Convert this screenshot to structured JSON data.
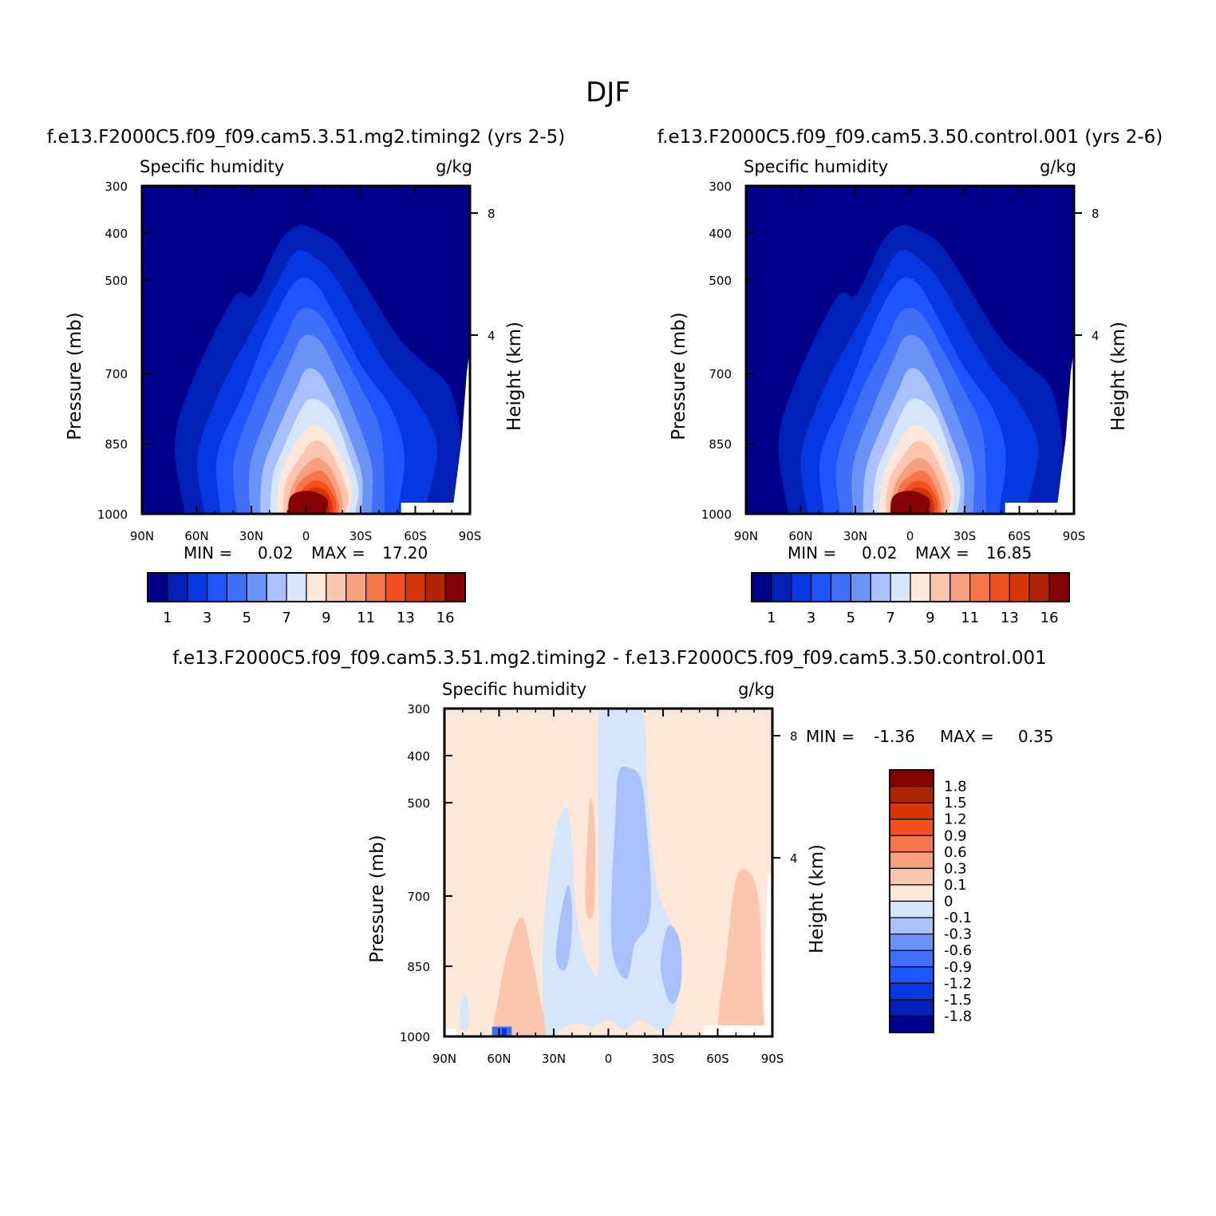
{
  "page_title": "DJF",
  "colors": {
    "seq": [
      "#00008a",
      "#0020b8",
      "#0538e0",
      "#1e54fe",
      "#3f6ff9",
      "#6a93f7",
      "#a8c0fb",
      "#d6e6fa",
      "#fde7d8",
      "#fbc6ad",
      "#f8a07d",
      "#f67647",
      "#f44f1e",
      "#d93407",
      "#b12305",
      "#850000"
    ],
    "div": [
      "#00008a",
      "#0020b8",
      "#0538e0",
      "#1e54fe",
      "#3f6ff9",
      "#6a93f7",
      "#a8c0fb",
      "#d6e6fa",
      "#fde7d8",
      "#fbc6ad",
      "#f8a07d",
      "#f67647",
      "#f44f1e",
      "#d93407",
      "#b12305",
      "#850000"
    ]
  },
  "chart_data": [
    {
      "type": "heatmap",
      "title": "f.e13.F2000C5.f09_f09.cam5.3.51.mg2.timing2 (yrs 2-5)",
      "left_string": "Specific humidity",
      "right_string": "g/kg",
      "ylabel": "Pressure (mb)",
      "y2label": "Height (km)",
      "x_ticks": [
        "90N",
        "60N",
        "30N",
        "0",
        "30S",
        "60S",
        "90S"
      ],
      "y_ticks": [
        "300",
        "400",
        "500",
        "700",
        "850",
        "1000"
      ],
      "y2_ticks": [
        "8",
        "4"
      ],
      "min_label": "MIN =",
      "min_value": "0.02",
      "max_label": "MAX =",
      "max_value": "17.20",
      "colorbar_labels": [
        "1",
        "3",
        "5",
        "7",
        "9",
        "11",
        "13",
        "16"
      ],
      "colorbar_orientation": "horizontal",
      "peak_location": "surface near equator",
      "peak_value": 17.2
    },
    {
      "type": "heatmap",
      "title": "f.e13.F2000C5.f09_f09.cam5.3.50.control.001 (yrs 2-6)",
      "left_string": "Specific humidity",
      "right_string": "g/kg",
      "ylabel": "Pressure (mb)",
      "y2label": "Height (km)",
      "x_ticks": [
        "90N",
        "60N",
        "30N",
        "0",
        "30S",
        "60S",
        "90S"
      ],
      "y_ticks": [
        "300",
        "400",
        "500",
        "700",
        "850",
        "1000"
      ],
      "y2_ticks": [
        "8",
        "4"
      ],
      "min_label": "MIN =",
      "min_value": "0.02",
      "max_label": "MAX =",
      "max_value": "16.85",
      "colorbar_labels": [
        "1",
        "3",
        "5",
        "7",
        "9",
        "11",
        "13",
        "16"
      ],
      "colorbar_orientation": "horizontal",
      "peak_location": "surface near equator",
      "peak_value": 16.85
    },
    {
      "type": "heatmap",
      "title": "f.e13.F2000C5.f09_f09.cam5.3.51.mg2.timing2 - f.e13.F2000C5.f09_f09.cam5.3.50.control.001",
      "left_string": "Specific humidity",
      "right_string": "g/kg",
      "ylabel": "Pressure (mb)",
      "y2label": "Height (km)",
      "x_ticks": [
        "90N",
        "60N",
        "30N",
        "0",
        "30S",
        "60S",
        "90S"
      ],
      "y_ticks": [
        "300",
        "400",
        "500",
        "700",
        "850",
        "1000"
      ],
      "y2_ticks": [
        "8",
        "4"
      ],
      "min_label": "MIN =",
      "min_value": "-1.36",
      "max_label": "MAX =",
      "max_value": "0.35",
      "colorbar_labels": [
        "1.8",
        "1.5",
        "1.2",
        "0.9",
        "0.6",
        "0.3",
        "0.1",
        "0",
        "-0.1",
        "-0.3",
        "-0.6",
        "-0.9",
        "-1.2",
        "-1.5",
        "-1.8"
      ],
      "colorbar_orientation": "vertical"
    }
  ]
}
